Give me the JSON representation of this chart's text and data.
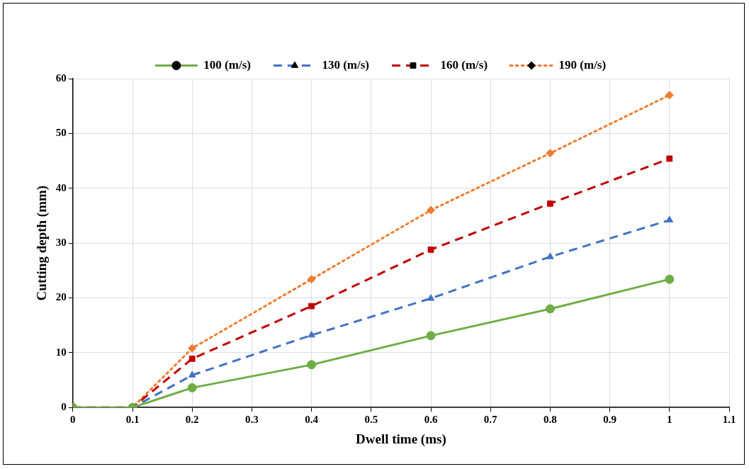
{
  "chart_data": {
    "type": "line",
    "xlabel": "Dwell time (ms)",
    "ylabel": "Cutting depth (mm)",
    "x": [
      0,
      0.1,
      0.2,
      0.4,
      0.6,
      0.8,
      1
    ],
    "series": [
      {
        "name": "100 (m/s)",
        "color": "#70ad47",
        "marker": "circle",
        "line_style": "solid",
        "values": [
          0,
          0,
          3.6,
          7.8,
          13.1,
          18.0,
          23.4
        ]
      },
      {
        "name": "130 (m/s)",
        "color": "#4472c4",
        "marker": "triangle",
        "line_style": "dashed",
        "values": [
          0,
          0,
          5.9,
          13.2,
          19.9,
          27.5,
          34.2
        ]
      },
      {
        "name": "160 (m/s)",
        "color": "#c00000",
        "marker": "square",
        "line_style": "dashed",
        "values": [
          0,
          0,
          8.9,
          18.5,
          28.8,
          37.2,
          45.4
        ]
      },
      {
        "name": "190 (m/s)",
        "color": "#ed7d31",
        "marker": "diamond",
        "line_style": "dotted",
        "values": [
          0,
          0,
          10.8,
          23.4,
          36.0,
          46.4,
          57.0
        ]
      }
    ],
    "xlim": [
      0,
      1.1
    ],
    "xticks": [
      0,
      0.1,
      0.2,
      0.3,
      0.4,
      0.5,
      0.6,
      0.7,
      0.8,
      0.9,
      1,
      1.1
    ],
    "ylim": [
      0,
      60
    ],
    "yticks": [
      0,
      10,
      20,
      30,
      40,
      50,
      60
    ],
    "grid": true,
    "legend": "top"
  }
}
